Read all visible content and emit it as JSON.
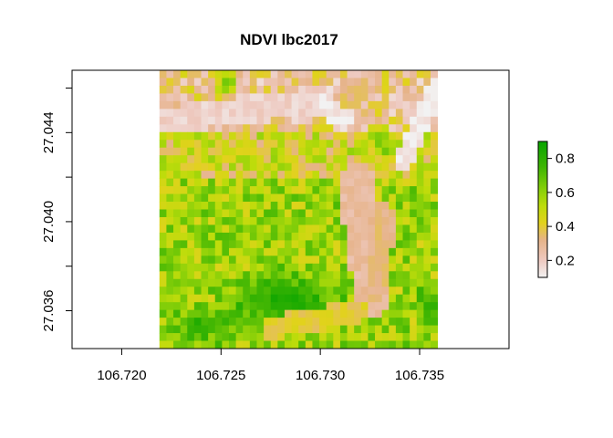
{
  "chart_data": {
    "type": "heatmap",
    "title": "NDVI lbc2017",
    "xlabel": "",
    "ylabel": "",
    "xlim": [
      106.7175,
      106.7395
    ],
    "ylim": [
      27.0343,
      27.0468
    ],
    "raster_extent": {
      "xmin": 106.7219,
      "xmax": 106.7359,
      "ymin": 27.0343,
      "ymax": 27.0468
    },
    "grid_size": {
      "cols": 40,
      "rows": 36
    },
    "x_ticks": [
      {
        "value": 106.72,
        "label": "106.720"
      },
      {
        "value": 106.725,
        "label": "106.725"
      },
      {
        "value": 106.73,
        "label": "106.730"
      },
      {
        "value": 106.735,
        "label": "106.735"
      }
    ],
    "y_ticks": [
      {
        "value": 27.036,
        "label": "27.036"
      },
      {
        "value": 27.038,
        "label": ""
      },
      {
        "value": 27.04,
        "label": "27.040"
      },
      {
        "value": 27.042,
        "label": ""
      },
      {
        "value": 27.044,
        "label": "27.044"
      },
      {
        "value": 27.046,
        "label": ""
      }
    ],
    "legend": {
      "placement": "right",
      "range": [
        0.1,
        0.9
      ],
      "ticks": [
        {
          "value": 0.2,
          "label": "0.2"
        },
        {
          "value": 0.4,
          "label": "0.4"
        },
        {
          "value": 0.6,
          "label": "0.6"
        },
        {
          "value": 0.8,
          "label": "0.8"
        }
      ]
    },
    "colormap": [
      {
        "value": 0.1,
        "color": "#f2f2f2"
      },
      {
        "value": 0.2,
        "color": "#eec9c0"
      },
      {
        "value": 0.32,
        "color": "#e6b389"
      },
      {
        "value": 0.42,
        "color": "#e2d21c"
      },
      {
        "value": 0.52,
        "color": "#bedc0b"
      },
      {
        "value": 0.62,
        "color": "#86cf09"
      },
      {
        "value": 0.75,
        "color": "#3eb503"
      },
      {
        "value": 0.9,
        "color": "#08a400"
      }
    ],
    "ndvi_features": {
      "bare_bands": [
        {
          "type": "line",
          "from": [
            106.7225,
            27.0446
          ],
          "to": [
            106.7302,
            27.0455
          ],
          "width": 0.0006,
          "value": 0.18
        },
        {
          "type": "line",
          "from": [
            106.73,
            27.0452
          ],
          "to": [
            106.7312,
            27.0446
          ],
          "width": 0.0005,
          "value": 0.12
        },
        {
          "type": "line",
          "from": [
            106.7342,
            27.0428
          ],
          "to": [
            106.7358,
            27.0459
          ],
          "width": 0.0005,
          "value": 0.12
        },
        {
          "type": "line",
          "from": [
            106.7318,
            27.0418
          ],
          "to": [
            106.7326,
            27.0366
          ],
          "width": 0.0009,
          "value": 0.27
        },
        {
          "type": "line",
          "from": [
            106.7332,
            27.0402
          ],
          "to": [
            106.7328,
            27.037
          ],
          "width": 0.0006,
          "value": 0.32
        },
        {
          "type": "line",
          "from": [
            106.7275,
            27.0352
          ],
          "to": [
            106.732,
            27.036
          ],
          "width": 0.0005,
          "value": 0.4
        }
      ],
      "vegetation_blobs": [
        {
          "center": [
            106.7283,
            27.0364
          ],
          "radius": [
            0.004,
            0.0018
          ],
          "value": 0.87
        },
        {
          "center": [
            106.724,
            27.0353
          ],
          "radius": [
            0.0022,
            0.001
          ],
          "value": 0.82
        },
        {
          "center": [
            106.7253,
            27.0462
          ],
          "radius": [
            0.0008,
            0.0008
          ],
          "value": 0.72
        },
        {
          "center": [
            106.733,
            27.0438
          ],
          "radius": [
            0.0007,
            0.001
          ],
          "value": 0.7
        },
        {
          "center": [
            106.7355,
            27.036
          ],
          "radius": [
            0.0008,
            0.0014
          ],
          "value": 0.82
        }
      ]
    }
  }
}
